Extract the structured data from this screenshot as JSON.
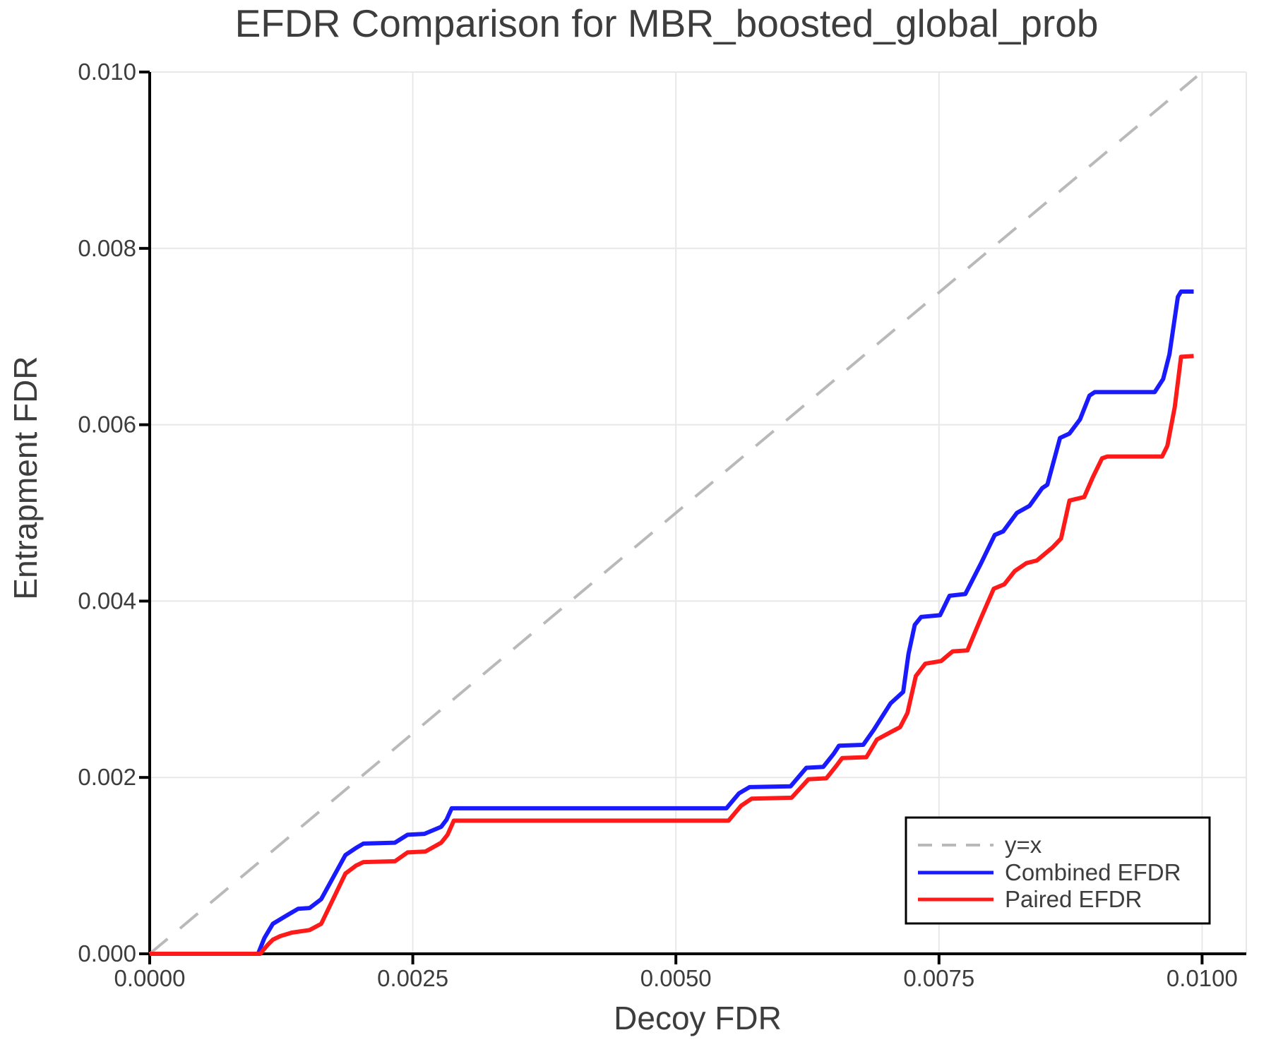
{
  "chart_data": {
    "type": "line",
    "title": "EFDR Comparison for MBR_boosted_global_prob",
    "xlabel": "Decoy FDR",
    "ylabel": "Entrapment FDR",
    "xlim": [
      0,
      0.01042
    ],
    "ylim": [
      0,
      0.01
    ],
    "grid": true,
    "x_ticks": [
      0.0,
      0.0025,
      0.005,
      0.0075,
      0.01
    ],
    "x_tick_labels": [
      "0.0000",
      "0.0025",
      "0.0050",
      "0.0075",
      "0.0100"
    ],
    "y_ticks": [
      0.0,
      0.002,
      0.004,
      0.006,
      0.008,
      0.01
    ],
    "y_tick_labels": [
      "0.000",
      "0.002",
      "0.004",
      "0.006",
      "0.008",
      "0.010"
    ],
    "legend": {
      "position": "lower right"
    },
    "colors": {
      "identity_line": "#b9b9b9",
      "combined": "#1a1aff",
      "paired": "#ff1a1a",
      "grid": "#e8e8e8",
      "spine": "#000000",
      "text": "#3d3d3d"
    },
    "series": [
      {
        "name": "y=x",
        "style": "dashed",
        "color": "#b9b9b9",
        "width": 4,
        "points": [
          [
            0,
            0
          ],
          [
            0.00995,
            0.00995
          ]
        ]
      },
      {
        "name": "Combined EFDR",
        "style": "solid",
        "color": "#1a1aff",
        "width": 6,
        "points": [
          [
            0,
            0
          ],
          [
            0.00103,
            0
          ],
          [
            0.00109,
            0.00018
          ],
          [
            0.00117,
            0.00034
          ],
          [
            0.00131,
            0.00044
          ],
          [
            0.00141,
            0.00051
          ],
          [
            0.00152,
            0.00052
          ],
          [
            0.00163,
            0.00062
          ],
          [
            0.00186,
            0.00112
          ],
          [
            0.00196,
            0.0012
          ],
          [
            0.00203,
            0.00125
          ],
          [
            0.00233,
            0.00126
          ],
          [
            0.00245,
            0.00135
          ],
          [
            0.00261,
            0.00136
          ],
          [
            0.00277,
            0.00144
          ],
          [
            0.00282,
            0.00152
          ],
          [
            0.00287,
            0.00165
          ],
          [
            0.00548,
            0.00165
          ],
          [
            0.0056,
            0.00182
          ],
          [
            0.0057,
            0.00189
          ],
          [
            0.00609,
            0.0019
          ],
          [
            0.00624,
            0.00211
          ],
          [
            0.0064,
            0.00212
          ],
          [
            0.0065,
            0.00227
          ],
          [
            0.00655,
            0.00236
          ],
          [
            0.00678,
            0.00237
          ],
          [
            0.00688,
            0.00254
          ],
          [
            0.00704,
            0.00284
          ],
          [
            0.00716,
            0.00297
          ],
          [
            0.00721,
            0.0034
          ],
          [
            0.00727,
            0.00373
          ],
          [
            0.00733,
            0.00382
          ],
          [
            0.00751,
            0.00384
          ],
          [
            0.0076,
            0.00406
          ],
          [
            0.00775,
            0.00408
          ],
          [
            0.0079,
            0.00443
          ],
          [
            0.00803,
            0.00475
          ],
          [
            0.00811,
            0.00479
          ],
          [
            0.00824,
            0.005
          ],
          [
            0.00836,
            0.00508
          ],
          [
            0.00848,
            0.00528
          ],
          [
            0.00853,
            0.00532
          ],
          [
            0.00865,
            0.00585
          ],
          [
            0.00874,
            0.0059
          ],
          [
            0.00884,
            0.00606
          ],
          [
            0.00893,
            0.00633
          ],
          [
            0.00898,
            0.00637
          ],
          [
            0.00955,
            0.00637
          ],
          [
            0.00963,
            0.00652
          ],
          [
            0.00969,
            0.0068
          ],
          [
            0.00977,
            0.00745
          ],
          [
            0.0098,
            0.00751
          ],
          [
            0.00992,
            0.00751
          ]
        ]
      },
      {
        "name": "Paired EFDR",
        "style": "solid",
        "color": "#ff1a1a",
        "width": 6,
        "points": [
          [
            0,
            0
          ],
          [
            0.00105,
            0
          ],
          [
            0.00112,
            0.0001
          ],
          [
            0.00117,
            0.00016
          ],
          [
            0.00124,
            0.0002
          ],
          [
            0.00135,
            0.00024
          ],
          [
            0.00152,
            0.00027
          ],
          [
            0.00163,
            0.00034
          ],
          [
            0.00186,
            0.00091
          ],
          [
            0.00196,
            0.001
          ],
          [
            0.00203,
            0.00104
          ],
          [
            0.00233,
            0.00105
          ],
          [
            0.00245,
            0.00115
          ],
          [
            0.00262,
            0.00116
          ],
          [
            0.00277,
            0.00126
          ],
          [
            0.00283,
            0.00135
          ],
          [
            0.00289,
            0.00151
          ],
          [
            0.0055,
            0.00151
          ],
          [
            0.00562,
            0.00168
          ],
          [
            0.00572,
            0.00176
          ],
          [
            0.0061,
            0.00177
          ],
          [
            0.00626,
            0.00198
          ],
          [
            0.00643,
            0.00199
          ],
          [
            0.00653,
            0.00214
          ],
          [
            0.00658,
            0.00222
          ],
          [
            0.00681,
            0.00223
          ],
          [
            0.00691,
            0.00243
          ],
          [
            0.00705,
            0.00252
          ],
          [
            0.00713,
            0.00257
          ],
          [
            0.0072,
            0.00273
          ],
          [
            0.00728,
            0.00315
          ],
          [
            0.00737,
            0.00329
          ],
          [
            0.00752,
            0.00332
          ],
          [
            0.00763,
            0.00343
          ],
          [
            0.00777,
            0.00344
          ],
          [
            0.0079,
            0.00381
          ],
          [
            0.00802,
            0.00414
          ],
          [
            0.00812,
            0.00419
          ],
          [
            0.00822,
            0.00434
          ],
          [
            0.00833,
            0.00443
          ],
          [
            0.00843,
            0.00446
          ],
          [
            0.00858,
            0.00461
          ],
          [
            0.00866,
            0.00471
          ],
          [
            0.00874,
            0.00514
          ],
          [
            0.00888,
            0.00518
          ],
          [
            0.00896,
            0.0054
          ],
          [
            0.00905,
            0.00562
          ],
          [
            0.0091,
            0.00564
          ],
          [
            0.00962,
            0.00564
          ],
          [
            0.00967,
            0.00576
          ],
          [
            0.00974,
            0.0062
          ],
          [
            0.0098,
            0.00677
          ],
          [
            0.00992,
            0.00678
          ]
        ]
      }
    ]
  }
}
